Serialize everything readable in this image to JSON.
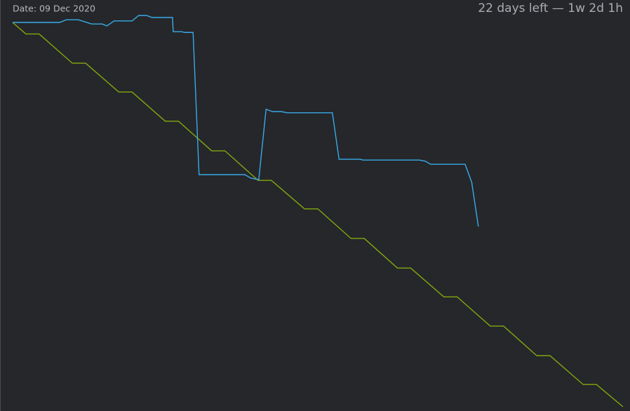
{
  "chart_data": {
    "type": "line",
    "date_label": "Date: 09 Dec 2020",
    "remaining_label": "22 days left — 1w 2d 1h",
    "xlim": [
      0,
      92
    ],
    "ylim": [
      0,
      100
    ],
    "series": [
      {
        "color": "#84a80c",
        "x": [
          0,
          2,
          4,
          9,
          11,
          16,
          18,
          23,
          25,
          30,
          32,
          37,
          39,
          44,
          46,
          51,
          53,
          58,
          60,
          65,
          67,
          72,
          74,
          79,
          81,
          86,
          88,
          92
        ],
        "values": [
          100,
          97,
          97,
          89.4,
          89.4,
          81.9,
          81.9,
          74.3,
          74.3,
          66.6,
          66.6,
          58.9,
          58.9,
          51.5,
          51.5,
          43.8,
          43.8,
          36.1,
          36.1,
          28.6,
          28.6,
          21,
          21,
          13.3,
          13.3,
          5.8,
          5.8,
          0
        ]
      },
      {
        "color": "#3aaae6",
        "x": [
          0,
          7.1,
          8.1,
          9.9,
          11.9,
          13.5,
          14.2,
          15.3,
          18.0,
          19.0,
          20.2,
          21.0,
          24.1,
          24.2,
          25.5,
          25.9,
          27.2,
          28.1,
          35.0,
          35.9,
          37.1,
          38.2,
          39.2,
          40.5,
          41.4,
          48.2,
          49.2,
          52.4,
          52.8,
          61.3,
          62.2,
          63.0,
          68.2,
          69.2,
          70.2
        ],
        "values": [
          100,
          100,
          100.7,
          100.7,
          99.6,
          99.6,
          99.1,
          100.4,
          100.4,
          101.8,
          101.8,
          101.3,
          101.3,
          97.6,
          97.6,
          97.4,
          97.4,
          60.4,
          60.4,
          59.5,
          59.1,
          77.4,
          76.8,
          76.8,
          76.5,
          76.5,
          64.4,
          64.4,
          64.2,
          64.2,
          63.9,
          63.1,
          63.1,
          58.4,
          46.9
        ]
      }
    ]
  }
}
